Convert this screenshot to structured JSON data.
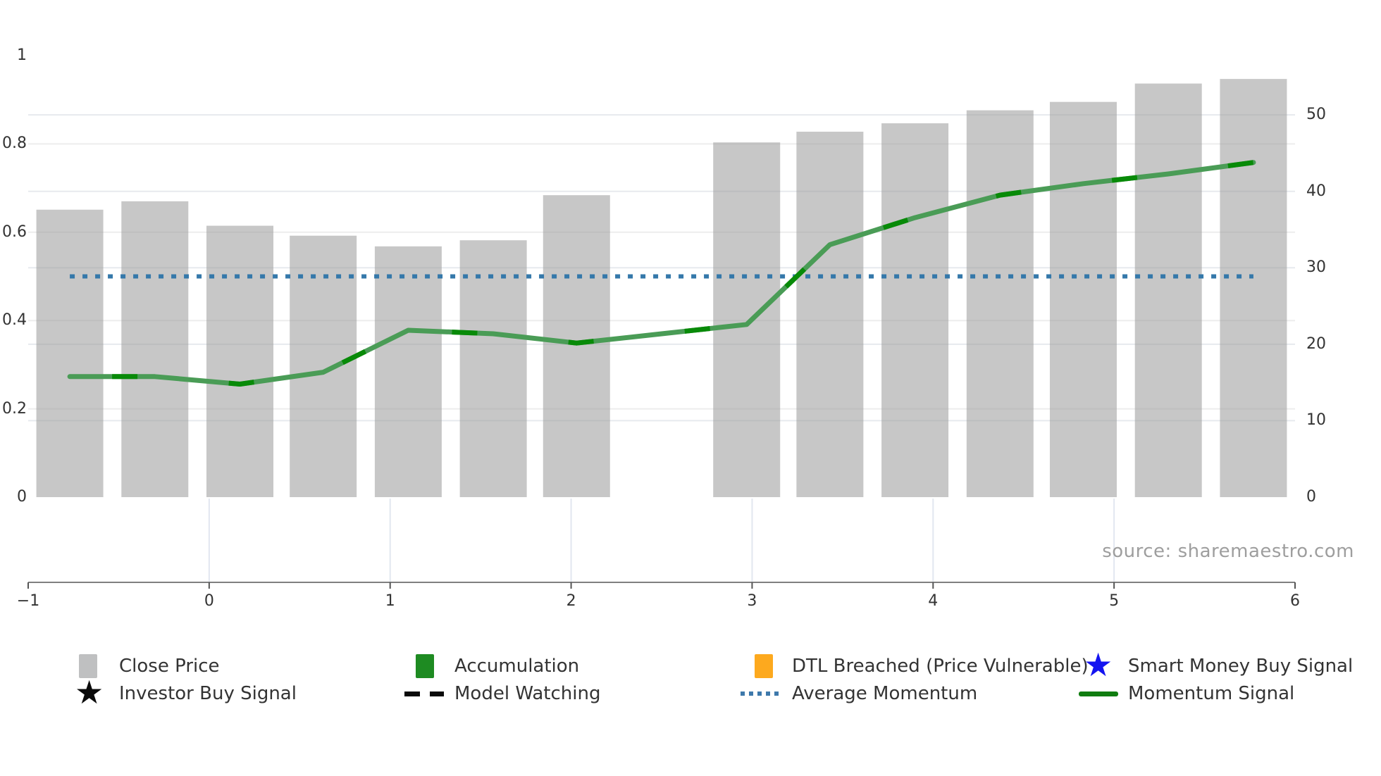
{
  "chart_data": {
    "type": "bar",
    "title": "",
    "subtitle": "",
    "x_positions": [
      -0.77,
      -0.3,
      0.17,
      0.63,
      1.1,
      1.57,
      2.03,
      2.5,
      2.97,
      3.43,
      3.9,
      4.37,
      4.83,
      5.3,
      5.77
    ],
    "series": [
      {
        "name": "Close Price",
        "type": "bar",
        "yaxis": "right",
        "values": [
          37.6,
          38.7,
          35.5,
          34.2,
          32.8,
          33.6,
          39.5,
          null,
          46.4,
          47.8,
          48.9,
          50.6,
          51.7,
          54.1,
          54.7
        ]
      },
      {
        "name": "Momentum Signal",
        "type": "line",
        "yaxis": "left",
        "values": [
          0.273,
          0.273,
          0.256,
          0.283,
          0.378,
          0.37,
          0.349,
          0.37,
          0.391,
          0.572,
          0.633,
          0.684,
          0.71,
          0.732,
          0.758
        ]
      },
      {
        "name": "Average Momentum",
        "type": "dotted-line",
        "yaxis": "left",
        "constant_value": 0.5
      }
    ],
    "x_axis": {
      "range": [
        -1,
        6
      ],
      "tick_labels": [
        "−1",
        "0",
        "1",
        "2",
        "3",
        "4",
        "5",
        "6"
      ],
      "tick_values": [
        -1,
        0,
        1,
        2,
        3,
        4,
        5,
        6
      ]
    },
    "left_axis": {
      "range": [
        0,
        1.03
      ],
      "tick_labels": [
        "0",
        "0.2",
        "0.4",
        "0.6",
        "0.8",
        "1"
      ],
      "tick_values": [
        0,
        0.2,
        0.4,
        0.6,
        0.8,
        1
      ]
    },
    "right_axis": {
      "range": [
        0,
        59.5
      ],
      "tick_labels": [
        "0",
        "10",
        "20",
        "30",
        "40",
        "50"
      ],
      "tick_values": [
        0,
        10,
        20,
        30,
        40,
        50
      ]
    },
    "grid": "horizontal gridlines for both y axes; vertical gridlines only in band below plot",
    "legend_position": "bottom"
  },
  "legend": {
    "items": [
      {
        "id": "close-price",
        "label": "Close Price",
        "swatch": "bar",
        "color": "#bfc0c1"
      },
      {
        "id": "accumulation",
        "label": "Accumulation",
        "swatch": "bar",
        "color": "#1e8b22"
      },
      {
        "id": "dtl-breached",
        "label": "DTL Breached (Price Vulnerable)",
        "swatch": "bar",
        "color": "#fda91e"
      },
      {
        "id": "smart-money-buy-signal",
        "label": "Smart Money Buy Signal",
        "swatch": "star",
        "color": "#1414f0"
      },
      {
        "id": "investor-buy-signal",
        "label": "Investor Buy Signal",
        "swatch": "star",
        "color": "#0a0a0a"
      },
      {
        "id": "model-watching",
        "label": "Model Watching",
        "swatch": "dashed-line",
        "color": "#0a0a0a"
      },
      {
        "id": "average-momentum",
        "label": "Average Momentum",
        "swatch": "dotted-line",
        "color": "#3e79ab"
      },
      {
        "id": "momentum-signal",
        "label": "Momentum Signal",
        "swatch": "line",
        "color": "#107d10"
      }
    ]
  },
  "source_note": "source: sharemaestro.com",
  "colors": {
    "background": "#ffffff",
    "bar_fill": "#c9c9c9",
    "momentum_line": "#4a9c56",
    "accumulation_dash": "#088a08",
    "average_momentum_line": "#3478aa",
    "axis_line": "#808080",
    "tick_text": "#333333",
    "grid_left_axis": "#ededed",
    "grid_right_axis": "#e7eaee",
    "grid_vertical": "#e2e7f0",
    "source_text": "#9e9e9e"
  }
}
